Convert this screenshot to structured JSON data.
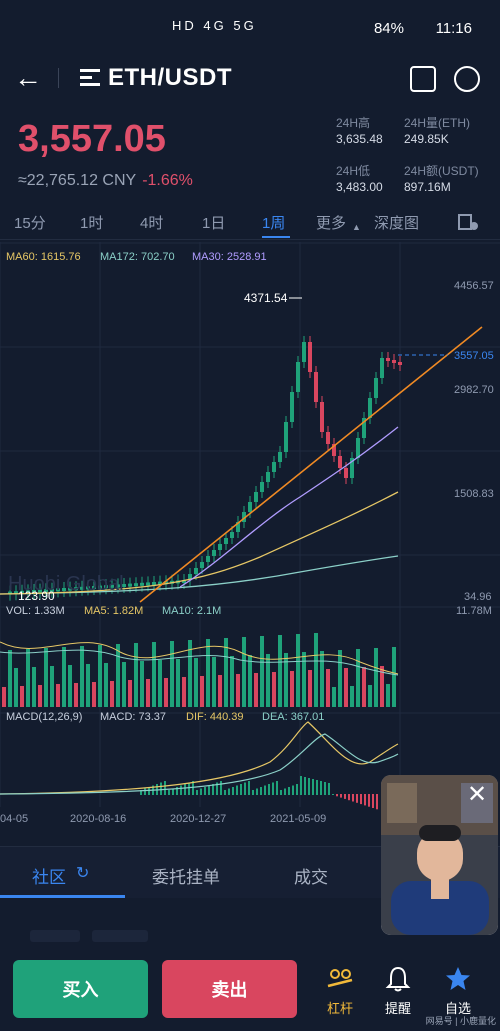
{
  "status": {
    "network": "HD 4G 5G",
    "battery": "84%",
    "time": "11:16"
  },
  "header": {
    "pair": "ETH/USDT"
  },
  "ticker": {
    "price": "3,557.05",
    "cny": "≈22,765.12 CNY",
    "change": "-1.66%",
    "stats": [
      {
        "label": "24H高",
        "value": "3,635.48"
      },
      {
        "label": "24H量(ETH)",
        "value": "249.85K"
      },
      {
        "label": "24H低",
        "value": "3,483.00"
      },
      {
        "label": "24H额(USDT)",
        "value": "897.16M"
      }
    ]
  },
  "periods": [
    "15分",
    "1时",
    "4时",
    "1日",
    "1周",
    "更多",
    "深度图"
  ],
  "active_period": "1周",
  "chart_legend": {
    "ma60": "MA60: 1615.76",
    "ma172": "MA172: 702.70",
    "ma30": "MA30: 2528.91",
    "vol": "VOL: 1.33M",
    "ma5": "MA5: 1.82M",
    "ma10": "MA10: 2.1M",
    "macd_title": "MACD(12,26,9)",
    "macd": "MACD: 73.37",
    "dif": "DIF: 440.39",
    "dea": "DEA: 367.01"
  },
  "chart_data": {
    "type": "line",
    "price_axis_labels": [
      "4456.57",
      "2982.70",
      "1508.83",
      "34.96"
    ],
    "current_price_label": "3557.05",
    "high_label": "4371.54",
    "low_label": "123.90",
    "volume_axis_label": "11.78M",
    "x_labels": [
      "04-05",
      "2020-08-16",
      "2020-12-27",
      "2021-05-09"
    ],
    "watermark_text": "Huobi Global",
    "colors": {
      "up": "#1fa27a",
      "down": "#d9465f",
      "ma60": "#e6c766",
      "ma172": "#8bd0c8",
      "ma30": "#b09cff"
    }
  },
  "bottom_tabs": [
    "社区",
    "委托挂单",
    "成交"
  ],
  "actions": {
    "buy": "买入",
    "sell": "卖出",
    "leverage": "杠杆",
    "alert": "提醒",
    "watchlist": "自选"
  },
  "watermark": "网易号 | 小鹿量化"
}
